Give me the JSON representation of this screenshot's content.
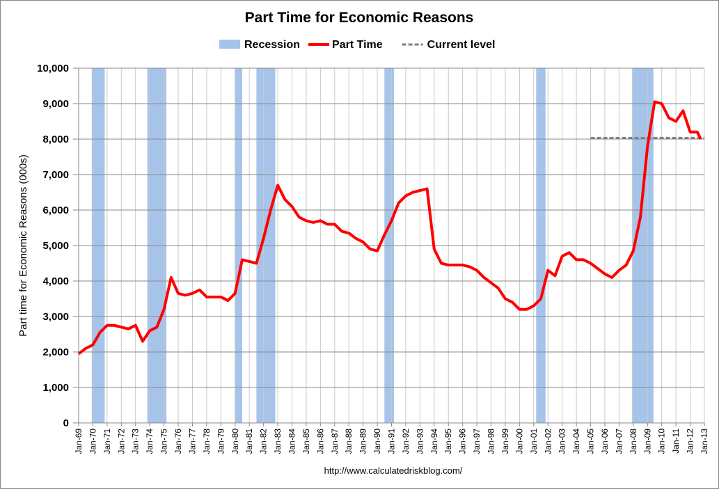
{
  "chart_data": {
    "type": "line",
    "title": "Part Time for Economic Reasons",
    "y_label": "Part time for Economic Reasons (000s)",
    "source": "http://www.calculatedriskblog.com/",
    "grid": true,
    "xlim": [
      1969,
      2013
    ],
    "ylim": [
      0,
      10000
    ],
    "yticks": [
      0,
      {
        "value": 1000,
        "label": "1,000"
      },
      {
        "value": 2000,
        "label": "2,000"
      },
      {
        "value": 3000,
        "label": "3,000"
      },
      {
        "value": 4000,
        "label": "4,000"
      },
      {
        "value": 5000,
        "label": "5,000"
      },
      {
        "value": 6000,
        "label": "6,000"
      },
      {
        "value": 7000,
        "label": "7,000"
      },
      {
        "value": 8000,
        "label": "8,000"
      },
      {
        "value": 9000,
        "label": "9,000"
      },
      {
        "value": 10000,
        "label": "10,000"
      }
    ],
    "xticks": [
      {
        "value": 1969,
        "label": "Jan-69"
      },
      {
        "value": 1970,
        "label": "Jan-70"
      },
      {
        "value": 1971,
        "label": "Jan-71"
      },
      {
        "value": 1972,
        "label": "Jan-72"
      },
      {
        "value": 1973,
        "label": "Jan-73"
      },
      {
        "value": 1974,
        "label": "Jan-74"
      },
      {
        "value": 1975,
        "label": "Jan-75"
      },
      {
        "value": 1976,
        "label": "Jan-76"
      },
      {
        "value": 1977,
        "label": "Jan-77"
      },
      {
        "value": 1978,
        "label": "Jan-78"
      },
      {
        "value": 1979,
        "label": "Jan-79"
      },
      {
        "value": 1980,
        "label": "Jan-80"
      },
      {
        "value": 1981,
        "label": "Jan-81"
      },
      {
        "value": 1982,
        "label": "Jan-82"
      },
      {
        "value": 1983,
        "label": "Jan-83"
      },
      {
        "value": 1984,
        "label": "Jan-84"
      },
      {
        "value": 1985,
        "label": "Jan-85"
      },
      {
        "value": 1986,
        "label": "Jan-86"
      },
      {
        "value": 1987,
        "label": "Jan-87"
      },
      {
        "value": 1988,
        "label": "Jan-88"
      },
      {
        "value": 1989,
        "label": "Jan-89"
      },
      {
        "value": 1990,
        "label": "Jan-90"
      },
      {
        "value": 1991,
        "label": "Jan-91"
      },
      {
        "value": 1992,
        "label": "Jan-92"
      },
      {
        "value": 1993,
        "label": "Jan-93"
      },
      {
        "value": 1994,
        "label": "Jan-94"
      },
      {
        "value": 1995,
        "label": "Jan-95"
      },
      {
        "value": 1996,
        "label": "Jan-96"
      },
      {
        "value": 1997,
        "label": "Jan-97"
      },
      {
        "value": 1998,
        "label": "Jan-98"
      },
      {
        "value": 1999,
        "label": "Jan-99"
      },
      {
        "value": 2000,
        "label": "Jan-00"
      },
      {
        "value": 2001,
        "label": "Jan-01"
      },
      {
        "value": 2002,
        "label": "Jan-02"
      },
      {
        "value": 2003,
        "label": "Jan-03"
      },
      {
        "value": 2004,
        "label": "Jan-04"
      },
      {
        "value": 2005,
        "label": "Jan-05"
      },
      {
        "value": 2006,
        "label": "Jan-06"
      },
      {
        "value": 2007,
        "label": "Jan-07"
      },
      {
        "value": 2008,
        "label": "Jan-08"
      },
      {
        "value": 2009,
        "label": "Jan-09"
      },
      {
        "value": 2010,
        "label": "Jan-10"
      },
      {
        "value": 2011,
        "label": "Jan-11"
      },
      {
        "value": 2012,
        "label": "Jan-12"
      },
      {
        "value": 2013,
        "label": "Jan-13"
      }
    ],
    "recessions": {
      "name": "Recession",
      "color": "#a6c4ea",
      "periods": [
        [
          1969.92,
          1970.83
        ],
        [
          1973.83,
          1975.17
        ],
        [
          1980.0,
          1980.5
        ],
        [
          1981.5,
          1982.83
        ],
        [
          1990.5,
          1991.17
        ],
        [
          2001.17,
          2001.83
        ],
        [
          2007.92,
          2009.42
        ]
      ]
    },
    "x": [
      1969,
      1969.5,
      1970,
      1970.5,
      1971,
      1971.5,
      1972,
      1972.5,
      1973,
      1973.5,
      1974,
      1974.5,
      1975,
      1975.5,
      1976,
      1976.5,
      1977,
      1977.5,
      1978,
      1978.5,
      1979,
      1979.5,
      1980,
      1980.5,
      1981,
      1981.5,
      1982,
      1982.5,
      1983,
      1983.5,
      1984,
      1984.5,
      1985,
      1985.5,
      1986,
      1986.5,
      1987,
      1987.5,
      1988,
      1988.5,
      1989,
      1989.5,
      1990,
      1990.5,
      1991,
      1991.5,
      1992,
      1992.5,
      1993,
      1993.5,
      1994,
      1994.5,
      1995,
      1995.5,
      1996,
      1996.5,
      1997,
      1997.5,
      1998,
      1998.5,
      1999,
      1999.5,
      2000,
      2000.5,
      2001,
      2001.5,
      2002,
      2002.5,
      2003,
      2003.5,
      2004,
      2004.5,
      2005,
      2005.5,
      2006,
      2006.5,
      2007,
      2007.5,
      2008,
      2008.5,
      2009,
      2009.5,
      2010,
      2010.5,
      2011,
      2011.5,
      2012,
      2012.5,
      2012.75
    ],
    "series": [
      {
        "name": "Part Time",
        "color": "#ff0000",
        "values": [
          1950,
          2100,
          2200,
          2550,
          2750,
          2750,
          2700,
          2650,
          2750,
          2300,
          2600,
          2700,
          3200,
          4100,
          3650,
          3600,
          3650,
          3750,
          3550,
          3550,
          3550,
          3450,
          3650,
          4600,
          4550,
          4500,
          5200,
          6000,
          6700,
          6300,
          6100,
          5800,
          5700,
          5650,
          5700,
          5600,
          5600,
          5400,
          5350,
          5200,
          5100,
          4900,
          4850,
          5300,
          5700,
          6200,
          6400,
          6500,
          6550,
          6600,
          4900,
          4500,
          4450,
          4450,
          4450,
          4400,
          4300,
          4100,
          3950,
          3800,
          3500,
          3400,
          3200,
          3200,
          3300,
          3500,
          4300,
          4150,
          4700,
          4800,
          4600,
          4600,
          4500,
          4350,
          4200,
          4100,
          4300,
          4450,
          4850,
          5800,
          7800,
          9050,
          9000,
          8600,
          8500,
          8800,
          8200,
          8200,
          8000
        ]
      }
    ],
    "current_level": {
      "name": "Current level",
      "color": "#808080",
      "value": 8031,
      "x": [
        2005,
        2013
      ]
    }
  }
}
